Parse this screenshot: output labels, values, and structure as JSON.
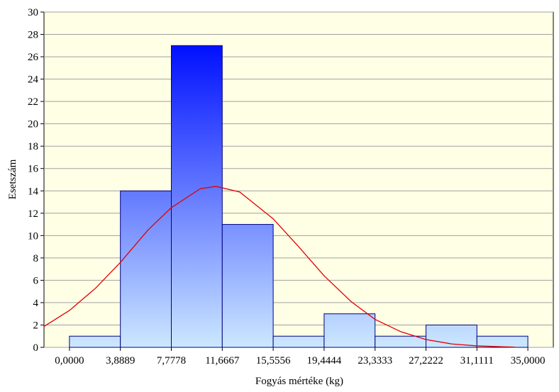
{
  "chart_data": {
    "type": "histogram",
    "xlabel": "Fogyás mértéke (kg)",
    "ylabel": "Esetszám",
    "bins": [
      0,
      3.8889,
      7.7778,
      11.6667,
      15.5556,
      19.4444,
      23.3333,
      27.2222,
      31.1111,
      35
    ],
    "values": [
      1,
      14,
      27,
      11,
      1,
      3,
      1,
      2,
      1
    ],
    "color_top": "#0010ff",
    "color_bottom": "#cce8ff",
    "edge_color": "#000080",
    "xlim": [
      -1.9444,
      36.9444
    ],
    "ylim": [
      0,
      30
    ],
    "xticks": [
      {
        "value": 0,
        "label": "0,0000"
      },
      {
        "value": 3.8889,
        "label": "3,8889"
      },
      {
        "value": 7.7778,
        "label": "7,7778"
      },
      {
        "value": 11.6667,
        "label": "11,6667"
      },
      {
        "value": 15.5556,
        "label": "15,5556"
      },
      {
        "value": 19.4444,
        "label": "19,4444"
      },
      {
        "value": 23.3333,
        "label": "23,3333"
      },
      {
        "value": 27.2222,
        "label": "27,2222"
      },
      {
        "value": 31.1111,
        "label": "31,1111"
      },
      {
        "value": 35,
        "label": "35,0000"
      }
    ],
    "yticks": [
      0,
      2,
      4,
      6,
      8,
      10,
      12,
      14,
      16,
      18,
      20,
      22,
      24,
      26,
      28,
      30
    ],
    "grid": true,
    "curve": {
      "color": "#e00000",
      "x": [
        -1.9444,
        0,
        2,
        3.8889,
        6,
        7.7778,
        10,
        11.2,
        13,
        15.5556,
        17.5,
        19.4444,
        21.5,
        23.3333,
        25.3,
        27.2222,
        29.2,
        31.1111,
        33,
        34
      ],
      "values": [
        1.87,
        3.3,
        5.3,
        7.6,
        10.5,
        12.5,
        14.2,
        14.4,
        13.9,
        11.5,
        9.0,
        6.4,
        4.1,
        2.5,
        1.4,
        0.7,
        0.3,
        0.13,
        0.05,
        0.02
      ]
    }
  }
}
